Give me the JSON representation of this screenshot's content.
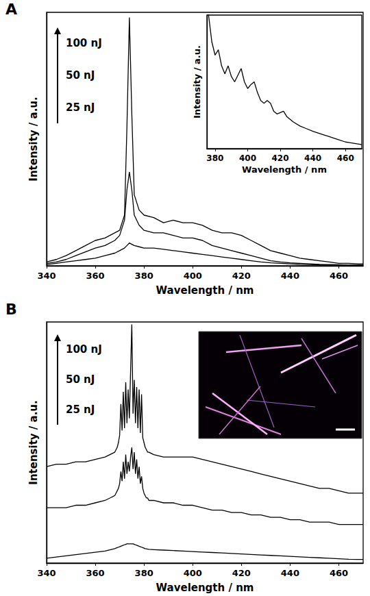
{
  "chart_data": [
    {
      "type": "line",
      "panel": "A",
      "x_label": "Wavelength / nm",
      "y_label": "Intensity / a.u.",
      "xlim": [
        340,
        470
      ],
      "xticks": [
        340,
        360,
        380,
        400,
        420,
        440,
        460
      ],
      "ylim": [
        0,
        100
      ],
      "tick_labels": "x",
      "grid": false,
      "annotations": [
        "100 nJ",
        "50 nJ",
        "25 nJ"
      ],
      "x": [
        340,
        344,
        348,
        352,
        356,
        360,
        364,
        368,
        370,
        372,
        373,
        374,
        375,
        376,
        378,
        380,
        384,
        388,
        392,
        396,
        400,
        404,
        408,
        412,
        416,
        420,
        424,
        428,
        432,
        436,
        440,
        444,
        448,
        452,
        456,
        460,
        464,
        468,
        470
      ],
      "series": [
        {
          "color": "#000000",
          "values": [
            0.5,
            1,
            1.5,
            2,
            2.5,
            3,
            4,
            5,
            6,
            7,
            8,
            9,
            8.5,
            8,
            7.5,
            7,
            7,
            6.5,
            6,
            5.5,
            5,
            4.5,
            4,
            3.5,
            3,
            2.5,
            2,
            1.5,
            1.2,
            1,
            0.8,
            0.6,
            0.5,
            0.4,
            0.3,
            0.3,
            0.2,
            0.2,
            0.2
          ]
        },
        {
          "color": "#000000",
          "values": [
            1,
            1.5,
            2.5,
            4,
            5.5,
            7,
            8,
            10,
            12,
            18,
            30,
            37,
            30,
            20,
            16,
            14,
            13,
            13,
            12,
            11,
            11,
            10,
            8,
            7,
            6,
            5,
            4,
            3,
            2,
            1.5,
            1.2,
            1,
            0.8,
            0.6,
            0.5,
            0.4,
            0.3,
            0.3,
            0.3
          ]
        },
        {
          "color": "#000000",
          "values": [
            1.5,
            2.5,
            4,
            6,
            8,
            10,
            11,
            13,
            14,
            20,
            55,
            98,
            60,
            28,
            22,
            20,
            19,
            17,
            18,
            17,
            17,
            16,
            14,
            13,
            13,
            12,
            10,
            8,
            6,
            5,
            4,
            3,
            2.5,
            2,
            1.5,
            1,
            1,
            0.8,
            0.8
          ]
        }
      ],
      "inset": {
        "type": "line",
        "x_label": "Wavelength / nm",
        "y_label": "Intensity / a.u.",
        "xlim": [
          375,
          470
        ],
        "xticks": [
          380,
          400,
          420,
          440,
          460
        ],
        "ylim": [
          0,
          100
        ],
        "tick_labels": "x",
        "grid": false,
        "x": [
          375,
          378,
          380,
          382,
          384,
          386,
          388,
          390,
          392,
          394,
          396,
          398,
          400,
          402,
          404,
          406,
          408,
          410,
          412,
          414,
          416,
          418,
          420,
          422,
          424,
          428,
          432,
          436,
          440,
          445,
          450,
          455,
          460,
          465,
          470
        ],
        "series": [
          {
            "color": "#000000",
            "values": [
              110,
              80,
              70,
              74,
              62,
              56,
              62,
              54,
              50,
              55,
              60,
              50,
              45,
              48,
              50,
              42,
              36,
              34,
              36,
              34,
              28,
              26,
              27,
              28,
              24,
              20,
              17,
              15,
              13,
              11,
              9,
              7,
              5,
              4,
              3
            ]
          }
        ]
      }
    },
    {
      "type": "line",
      "panel": "B",
      "x_label": "Wavelength / nm",
      "y_label": "Intensity / a.u.",
      "xlim": [
        340,
        470
      ],
      "xticks": [
        340,
        360,
        380,
        400,
        420,
        440,
        460
      ],
      "ylim": [
        0,
        100
      ],
      "tick_labels": "x",
      "grid": false,
      "annotations": [
        "100 nJ",
        "50 nJ",
        "25 nJ"
      ],
      "x": [
        340,
        344,
        348,
        352,
        356,
        360,
        364,
        366,
        368,
        368.5,
        369,
        369.5,
        370,
        370.5,
        371,
        371.5,
        372,
        372.5,
        373,
        373.5,
        374,
        374.5,
        375,
        375.5,
        376,
        376.5,
        377,
        377.5,
        378,
        378.5,
        379,
        379.5,
        380,
        380.5,
        381,
        381.5,
        382,
        384,
        388,
        392,
        396,
        400,
        404,
        408,
        412,
        416,
        420,
        424,
        428,
        432,
        436,
        440,
        444,
        448,
        452,
        456,
        460,
        464,
        468,
        470
      ],
      "series": [
        {
          "color": "#000000",
          "values": [
            2,
            2.5,
            3,
            3.5,
            4,
            4.5,
            5,
            5.5,
            6,
            6.2,
            6.4,
            6.6,
            6.8,
            7,
            7.2,
            7.4,
            7.6,
            7.8,
            8,
            8,
            8,
            8,
            8,
            8,
            7.8,
            7.6,
            7.4,
            7.2,
            7,
            6.8,
            6.6,
            6.4,
            6.2,
            6,
            5.9,
            5.8,
            5.7,
            5.6,
            5.4,
            5.2,
            5,
            4.8,
            4.6,
            4.4,
            4.2,
            4,
            3.8,
            3.6,
            3.4,
            3.2,
            3,
            2.8,
            2.6,
            2.4,
            2.2,
            2,
            1.8,
            1.6,
            1.5,
            1.5
          ]
        },
        {
          "color": "#000000",
          "values": [
            23,
            23,
            23,
            24,
            24,
            25,
            26,
            27,
            28,
            29,
            30,
            31,
            33,
            38,
            34,
            42,
            35,
            45,
            37,
            42,
            38,
            44,
            48,
            39,
            46,
            37,
            43,
            35,
            40,
            33,
            36,
            31,
            29,
            28,
            27,
            27,
            26,
            26,
            25,
            25,
            24,
            24,
            23,
            22,
            22,
            21,
            21,
            20,
            20,
            19,
            19,
            18,
            18,
            17,
            17,
            17,
            16,
            16,
            16,
            16
          ]
        },
        {
          "color": "#000000",
          "values": [
            40,
            41,
            41,
            42,
            42,
            43,
            44,
            45,
            46,
            47,
            48,
            50,
            53,
            66,
            55,
            71,
            56,
            75,
            58,
            72,
            60,
            80,
            99,
            62,
            76,
            58,
            73,
            56,
            72,
            54,
            70,
            52,
            50,
            48,
            47,
            46,
            46,
            45,
            44,
            44,
            44,
            44,
            43,
            42,
            41,
            40,
            39,
            38,
            37,
            36,
            35,
            34,
            33,
            32,
            31,
            31,
            30,
            29,
            29,
            29
          ]
        }
      ]
    }
  ]
}
